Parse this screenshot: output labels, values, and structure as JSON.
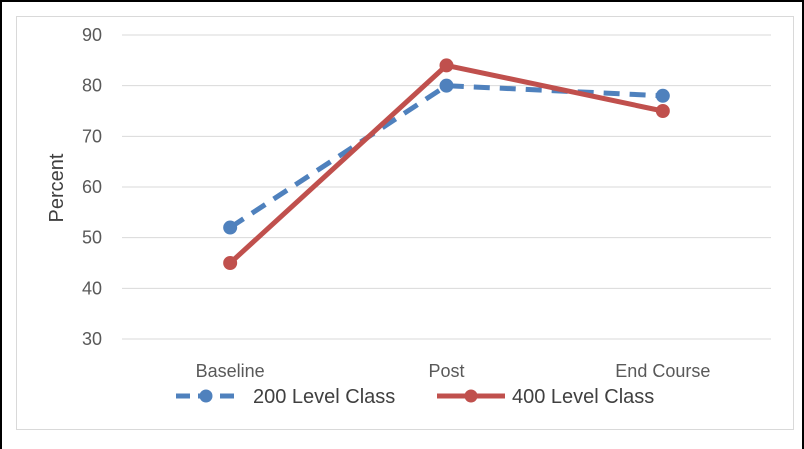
{
  "chart_data": {
    "type": "line",
    "categories": [
      "Baseline",
      "Post",
      "End Course"
    ],
    "series": [
      {
        "name": "200 Level Class",
        "values": [
          52,
          80,
          78
        ],
        "color": "#4f81bd",
        "style": "dashed"
      },
      {
        "name": "400 Level Class",
        "values": [
          45,
          84,
          75
        ],
        "color": "#c0504d",
        "style": "solid"
      }
    ],
    "yticks": [
      "30",
      "40",
      "50",
      "60",
      "70",
      "80",
      "90"
    ],
    "ylim": [
      30,
      90
    ],
    "ylabel": "Percent",
    "xlabel": "",
    "grid": "horizontal",
    "legend_position": "bottom"
  }
}
